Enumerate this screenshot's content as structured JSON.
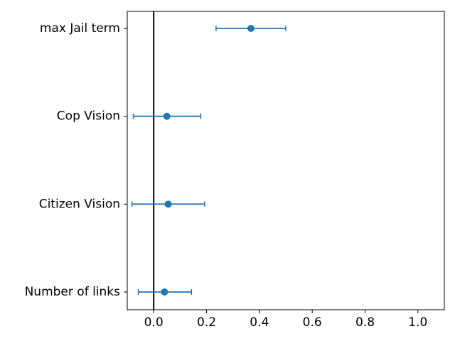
{
  "chart_data": {
    "type": "errorbar",
    "orientation": "horizontal",
    "categories": [
      "Number of links",
      "Citizen Vision",
      "Cop Vision",
      "max Jail term"
    ],
    "series": [
      {
        "values": [
          0.041,
          0.055,
          0.05,
          0.368
        ],
        "err_low": [
          -0.058,
          -0.082,
          -0.077,
          0.236
        ],
        "err_high": [
          0.143,
          0.193,
          0.178,
          0.5
        ]
      }
    ],
    "x_ticks": [
      "0.0",
      "0.2",
      "0.4",
      "0.6",
      "0.8",
      "1.0"
    ],
    "x_tick_values": [
      0.0,
      0.2,
      0.4,
      0.6,
      0.8,
      1.0
    ],
    "xlim": [
      -0.1,
      1.1
    ],
    "reference_line_x": 0.0,
    "marker_color": "#1f77b4",
    "reference_line_color": "#000000",
    "title": "",
    "xlabel": "",
    "ylabel": "",
    "grid": false,
    "legend": "none"
  }
}
